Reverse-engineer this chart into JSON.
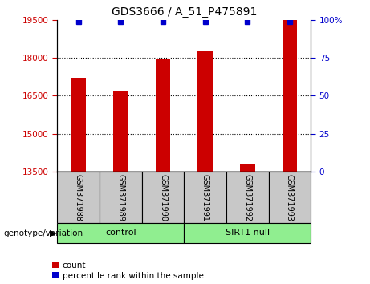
{
  "title": "GDS3666 / A_51_P475891",
  "samples": [
    "GSM371988",
    "GSM371989",
    "GSM371990",
    "GSM371991",
    "GSM371992",
    "GSM371993"
  ],
  "counts": [
    17200,
    16700,
    17950,
    18300,
    13800,
    19500
  ],
  "percentile_ranks": [
    99,
    99,
    99,
    99,
    99,
    99
  ],
  "bar_color": "#cc0000",
  "dot_color": "#0000cc",
  "ylim_left": [
    13500,
    19500
  ],
  "ylim_right": [
    0,
    100
  ],
  "yticks_left": [
    13500,
    15000,
    16500,
    18000,
    19500
  ],
  "yticks_right": [
    0,
    25,
    50,
    75,
    100
  ],
  "ytick_right_labels": [
    "0",
    "25",
    "50",
    "75",
    "100%"
  ],
  "grid_lines": [
    15000,
    16500,
    18000
  ],
  "control_label": "control",
  "sirt1_label": "SIRT1 null",
  "control_color": "#90EE90",
  "sirt1_color": "#90EE90",
  "xlabel_area_color": "#C8C8C8",
  "bar_width": 0.35,
  "tick_label_color_left": "#CC0000",
  "tick_label_color_right": "#0000CC",
  "legend_count": "count",
  "legend_percentile": "percentile rank within the sample",
  "genotype_label": "genotype/variation",
  "title_fontsize": 10
}
